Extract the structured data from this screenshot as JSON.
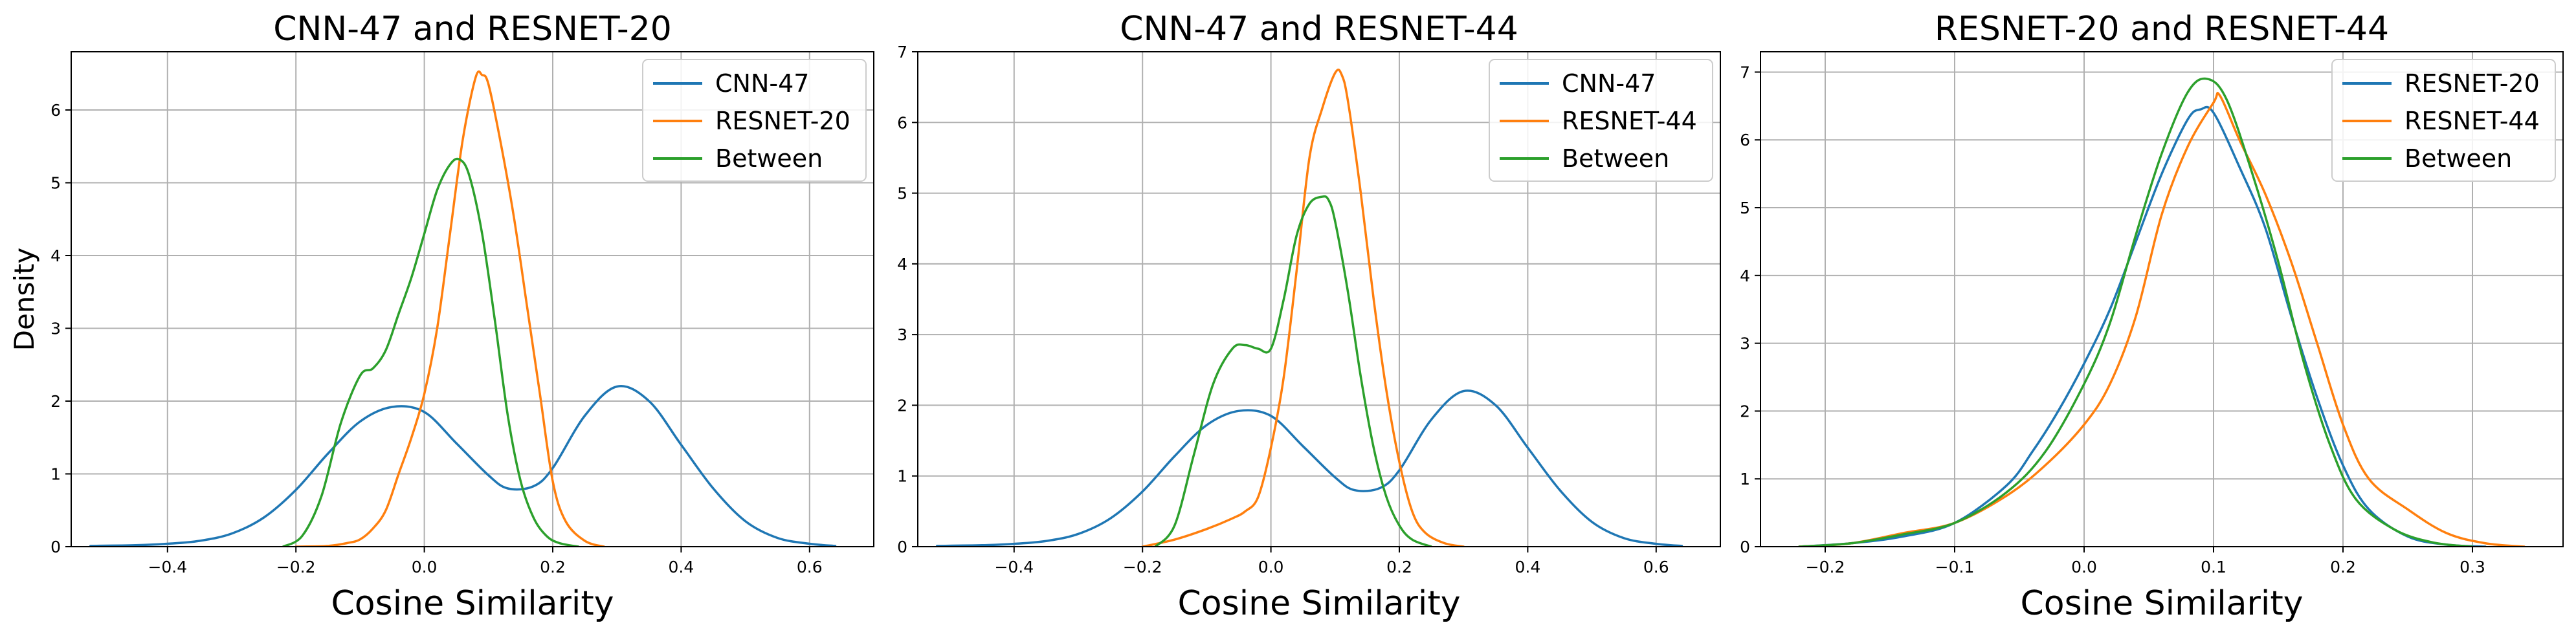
{
  "chart_data": [
    {
      "type": "line",
      "title": "CNN-47 and RESNET-20",
      "xlabel": "Cosine Similarity",
      "ylabel": "Density",
      "xlim": [
        -0.55,
        0.7
      ],
      "ylim": [
        0,
        6.8
      ],
      "xticks": [
        -0.4,
        -0.2,
        0.0,
        0.2,
        0.4,
        0.6
      ],
      "xtick_labels": [
        "−0.4",
        "−0.2",
        "0.0",
        "0.2",
        "0.4",
        "0.6"
      ],
      "yticks": [
        0,
        1,
        2,
        3,
        4,
        5,
        6
      ],
      "ytick_labels": [
        "0",
        "1",
        "2",
        "3",
        "4",
        "5",
        "6"
      ],
      "grid": true,
      "legend_position": "top-right",
      "series": [
        {
          "name": "CNN-47",
          "color": "#1f77b4",
          "x": [
            -0.52,
            -0.45,
            -0.4,
            -0.35,
            -0.3,
            -0.25,
            -0.2,
            -0.15,
            -0.1,
            -0.05,
            0.0,
            0.05,
            0.1,
            0.13,
            0.17,
            0.2,
            0.25,
            0.3,
            0.35,
            0.4,
            0.45,
            0.5,
            0.55,
            0.6,
            0.64
          ],
          "y": [
            0.01,
            0.02,
            0.04,
            0.08,
            0.18,
            0.4,
            0.78,
            1.28,
            1.72,
            1.92,
            1.85,
            1.42,
            0.98,
            0.8,
            0.83,
            1.08,
            1.8,
            2.2,
            2.0,
            1.4,
            0.8,
            0.35,
            0.12,
            0.04,
            0.01
          ]
        },
        {
          "name": "RESNET-20",
          "color": "#ff7f0e",
          "x": [
            -0.2,
            -0.15,
            -0.12,
            -0.1,
            -0.08,
            -0.06,
            -0.04,
            -0.02,
            0.0,
            0.02,
            0.04,
            0.06,
            0.08,
            0.09,
            0.1,
            0.12,
            0.14,
            0.16,
            0.18,
            0.2,
            0.22,
            0.25,
            0.28
          ],
          "y": [
            0.0,
            0.01,
            0.05,
            0.1,
            0.25,
            0.5,
            1.0,
            1.5,
            2.1,
            3.0,
            4.3,
            5.6,
            6.45,
            6.48,
            6.35,
            5.5,
            4.5,
            3.3,
            2.1,
            0.9,
            0.35,
            0.08,
            0.0
          ]
        },
        {
          "name": "Between",
          "color": "#2ca02c",
          "x": [
            -0.22,
            -0.19,
            -0.16,
            -0.13,
            -0.1,
            -0.08,
            -0.06,
            -0.04,
            -0.02,
            0.0,
            0.02,
            0.04,
            0.055,
            0.07,
            0.09,
            0.11,
            0.13,
            0.15,
            0.17,
            0.19,
            0.21,
            0.24
          ],
          "y": [
            0.0,
            0.15,
            0.7,
            1.7,
            2.35,
            2.45,
            2.7,
            3.2,
            3.7,
            4.3,
            4.9,
            5.25,
            5.32,
            5.1,
            4.3,
            3.1,
            1.8,
            0.9,
            0.4,
            0.15,
            0.05,
            0.0
          ]
        }
      ]
    },
    {
      "type": "line",
      "title": "CNN-47 and RESNET-44",
      "xlabel": "Cosine Similarity",
      "ylabel": "",
      "xlim": [
        -0.55,
        0.7
      ],
      "ylim": [
        0,
        7.0
      ],
      "xticks": [
        -0.4,
        -0.2,
        0.0,
        0.2,
        0.4,
        0.6
      ],
      "xtick_labels": [
        "−0.4",
        "−0.2",
        "0.0",
        "0.2",
        "0.4",
        "0.6"
      ],
      "yticks": [
        0,
        1,
        2,
        3,
        4,
        5,
        6,
        7
      ],
      "ytick_labels": [
        "0",
        "1",
        "2",
        "3",
        "4",
        "5",
        "6",
        "7"
      ],
      "grid": true,
      "legend_position": "top-right",
      "series": [
        {
          "name": "CNN-47",
          "color": "#1f77b4",
          "x": [
            -0.52,
            -0.45,
            -0.4,
            -0.35,
            -0.3,
            -0.25,
            -0.2,
            -0.15,
            -0.1,
            -0.05,
            0.0,
            0.05,
            0.1,
            0.13,
            0.17,
            0.2,
            0.25,
            0.3,
            0.35,
            0.4,
            0.45,
            0.5,
            0.55,
            0.6,
            0.64
          ],
          "y": [
            0.01,
            0.02,
            0.04,
            0.08,
            0.18,
            0.4,
            0.78,
            1.28,
            1.72,
            1.92,
            1.85,
            1.42,
            0.98,
            0.8,
            0.83,
            1.08,
            1.8,
            2.2,
            2.0,
            1.4,
            0.8,
            0.35,
            0.12,
            0.04,
            0.01
          ]
        },
        {
          "name": "RESNET-44",
          "color": "#ff7f0e",
          "x": [
            -0.2,
            -0.15,
            -0.1,
            -0.06,
            -0.04,
            -0.02,
            0.0,
            0.02,
            0.04,
            0.06,
            0.08,
            0.1,
            0.11,
            0.12,
            0.14,
            0.16,
            0.18,
            0.2,
            0.22,
            0.24,
            0.27,
            0.3
          ],
          "y": [
            0.0,
            0.1,
            0.25,
            0.4,
            0.5,
            0.7,
            1.4,
            2.4,
            3.9,
            5.5,
            6.2,
            6.7,
            6.68,
            6.3,
            5.0,
            3.5,
            2.2,
            1.2,
            0.5,
            0.2,
            0.05,
            0.0
          ]
        },
        {
          "name": "Between",
          "color": "#2ca02c",
          "x": [
            -0.18,
            -0.15,
            -0.12,
            -0.09,
            -0.06,
            -0.04,
            -0.02,
            0.0,
            0.02,
            0.04,
            0.06,
            0.08,
            0.09,
            0.1,
            0.12,
            0.14,
            0.16,
            0.18,
            0.2,
            0.22,
            0.25
          ],
          "y": [
            0.0,
            0.3,
            1.3,
            2.3,
            2.8,
            2.85,
            2.8,
            2.8,
            3.5,
            4.4,
            4.85,
            4.95,
            4.9,
            4.6,
            3.6,
            2.4,
            1.4,
            0.7,
            0.3,
            0.1,
            0.0
          ]
        }
      ]
    },
    {
      "type": "line",
      "title": "RESNET-20 and RESNET-44",
      "xlabel": "Cosine Similarity",
      "ylabel": "",
      "xlim": [
        -0.25,
        0.37
      ],
      "ylim": [
        0,
        7.3
      ],
      "xticks": [
        -0.2,
        -0.1,
        0.0,
        0.1,
        0.2,
        0.3
      ],
      "xtick_labels": [
        "−0.2",
        "−0.1",
        "0.0",
        "0.1",
        "0.2",
        "0.3"
      ],
      "yticks": [
        0,
        1,
        2,
        3,
        4,
        5,
        6,
        7
      ],
      "ytick_labels": [
        "0",
        "1",
        "2",
        "3",
        "4",
        "5",
        "6",
        "7"
      ],
      "grid": true,
      "legend_position": "top-right",
      "series": [
        {
          "name": "RESNET-20",
          "color": "#1f77b4",
          "x": [
            -0.22,
            -0.18,
            -0.14,
            -0.1,
            -0.06,
            -0.04,
            -0.02,
            0.0,
            0.02,
            0.04,
            0.06,
            0.08,
            0.09,
            0.1,
            0.12,
            0.14,
            0.16,
            0.18,
            0.2,
            0.22,
            0.25,
            0.28,
            0.31
          ],
          "y": [
            0.0,
            0.05,
            0.15,
            0.35,
            0.9,
            1.4,
            2.0,
            2.7,
            3.5,
            4.5,
            5.5,
            6.3,
            6.45,
            6.4,
            5.6,
            4.7,
            3.4,
            2.2,
            1.2,
            0.55,
            0.15,
            0.03,
            0.0
          ]
        },
        {
          "name": "RESNET-44",
          "color": "#ff7f0e",
          "x": [
            -0.22,
            -0.18,
            -0.14,
            -0.1,
            -0.06,
            -0.03,
            0.0,
            0.02,
            0.04,
            0.06,
            0.08,
            0.1,
            0.105,
            0.12,
            0.14,
            0.16,
            0.18,
            0.2,
            0.22,
            0.25,
            0.28,
            0.31,
            0.34
          ],
          "y": [
            0.0,
            0.05,
            0.2,
            0.35,
            0.75,
            1.2,
            1.8,
            2.4,
            3.4,
            4.9,
            5.9,
            6.55,
            6.65,
            6.0,
            5.2,
            4.2,
            3.0,
            1.8,
            1.0,
            0.55,
            0.2,
            0.05,
            0.0
          ]
        },
        {
          "name": "Between",
          "color": "#2ca02c",
          "x": [
            -0.22,
            -0.18,
            -0.14,
            -0.1,
            -0.06,
            -0.03,
            0.0,
            0.02,
            0.04,
            0.06,
            0.08,
            0.095,
            0.11,
            0.13,
            0.15,
            0.17,
            0.19,
            0.21,
            0.24,
            0.27,
            0.3
          ],
          "y": [
            0.0,
            0.05,
            0.18,
            0.35,
            0.8,
            1.4,
            2.4,
            3.3,
            4.6,
            5.8,
            6.7,
            6.9,
            6.6,
            5.5,
            4.2,
            2.7,
            1.5,
            0.7,
            0.25,
            0.06,
            0.0
          ]
        }
      ]
    }
  ]
}
